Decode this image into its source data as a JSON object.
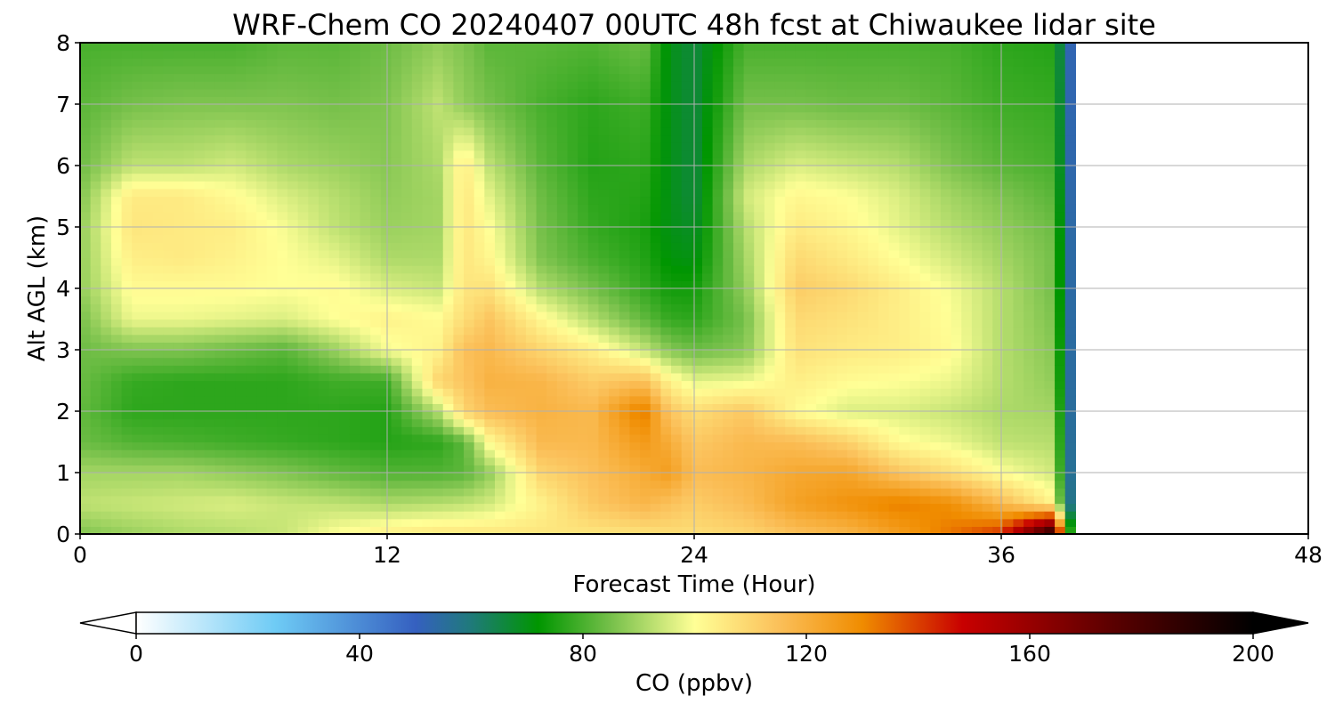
{
  "chart_data": {
    "type": "heatmap",
    "title": "WRF-Chem CO  20240407 00UTC 48h fcst at Chiwaukee lidar site",
    "xlabel": "Forecast Time (Hour)",
    "ylabel": "Alt AGL (km)",
    "xlim": [
      0,
      48
    ],
    "ylim": [
      0,
      8
    ],
    "x_ticks": [
      "0",
      "12",
      "24",
      "36",
      "48"
    ],
    "y_ticks": [
      "0",
      "1",
      "2",
      "3",
      "4",
      "5",
      "6",
      "7",
      "8"
    ],
    "grid": true,
    "data_end_hour": 38.9,
    "colorbar": {
      "label": "CO  (ppbv)",
      "range": [
        0,
        200
      ],
      "extend": "both",
      "ticks": [
        "0",
        "40",
        "80",
        "120",
        "160",
        "200"
      ],
      "color_stops": [
        {
          "v": 0,
          "c": "#ffffff"
        },
        {
          "v": 25,
          "c": "#6ecbf5"
        },
        {
          "v": 50,
          "c": "#3560c0"
        },
        {
          "v": 60,
          "c": "#1f7a7a"
        },
        {
          "v": 72,
          "c": "#009600"
        },
        {
          "v": 85,
          "c": "#76c04a"
        },
        {
          "v": 100,
          "c": "#ffff96"
        },
        {
          "v": 115,
          "c": "#fbc05a"
        },
        {
          "v": 130,
          "c": "#f08c00"
        },
        {
          "v": 148,
          "c": "#c80000"
        },
        {
          "v": 175,
          "c": "#5a0000"
        },
        {
          "v": 200,
          "c": "#000000"
        }
      ]
    },
    "hours": [
      0,
      2,
      4,
      6,
      8,
      10,
      12,
      14,
      15,
      16,
      18,
      20,
      22,
      23,
      24,
      26,
      28,
      30,
      32,
      34,
      36,
      38
    ],
    "altitudes_km": [
      0,
      0.5,
      1,
      1.5,
      2,
      2.5,
      3,
      3.5,
      4,
      4.5,
      5,
      5.5,
      6,
      7,
      8
    ],
    "co_ppbv": [
      [
        86,
        93,
        90,
        84,
        83,
        84,
        84,
        85,
        88,
        88,
        88,
        86,
        84,
        82,
        80
      ],
      [
        89,
        94,
        90,
        81,
        77,
        78,
        86,
        98,
        101,
        104,
        106,
        105,
        93,
        85,
        80
      ],
      [
        91,
        95,
        90,
        80,
        77,
        77,
        86,
        98,
        101,
        105,
        105,
        105,
        93,
        86,
        80
      ],
      [
        92,
        96,
        88,
        79,
        77,
        77,
        84,
        97,
        101,
        103,
        104,
        101,
        95,
        86,
        80
      ],
      [
        94,
        94,
        86,
        78,
        77,
        77,
        82,
        96,
        100,
        100,
        99,
        96,
        91,
        86,
        82
      ],
      [
        100,
        93,
        83,
        77,
        77,
        79,
        89,
        100,
        101,
        97,
        93,
        92,
        89,
        85,
        82
      ],
      [
        104,
        91,
        81,
        76,
        76,
        79,
        99,
        103,
        96,
        91,
        89,
        88,
        87,
        86,
        84
      ],
      [
        106,
        92,
        81,
        77,
        92,
        110,
        103,
        101,
        94,
        91,
        90,
        90,
        91,
        93,
        88
      ],
      [
        106,
        93,
        82,
        82,
        110,
        114,
        115,
        108,
        106,
        106,
        106,
        106,
        105,
        88,
        86
      ],
      [
        106,
        95,
        88,
        101,
        116,
        119,
        117,
        114,
        107,
        102,
        100,
        97,
        93,
        85,
        82
      ],
      [
        106,
        103,
        110,
        117,
        119,
        118,
        110,
        102,
        92,
        86,
        85,
        84,
        82,
        80,
        82
      ],
      [
        106,
        113,
        115,
        117,
        117,
        112,
        104,
        92,
        85,
        80,
        78,
        77,
        76,
        77,
        81
      ],
      [
        107,
        118,
        121,
        126,
        133,
        115,
        94,
        83,
        78,
        76,
        75,
        76,
        77,
        79,
        84
      ],
      [
        108,
        115,
        125,
        121,
        114,
        103,
        87,
        78,
        74,
        71,
        70,
        70,
        70,
        70,
        70
      ],
      [
        108,
        112,
        116,
        113,
        108,
        97,
        84,
        77,
        74,
        70,
        68,
        66,
        66,
        66,
        66
      ],
      [
        110,
        116,
        118,
        117,
        113,
        98,
        87,
        85,
        88,
        90,
        92,
        95,
        91,
        85,
        80
      ],
      [
        115,
        124,
        122,
        116,
        101,
        104,
        107,
        109,
        112,
        109,
        105,
        102,
        96,
        85,
        80
      ],
      [
        118,
        128,
        123,
        111,
        96,
        101,
        105,
        107,
        109,
        105,
        102,
        100,
        94,
        84,
        80
      ],
      [
        125,
        132,
        114,
        101,
        96,
        100,
        104,
        104,
        104,
        100,
        97,
        96,
        92,
        84,
        80
      ],
      [
        133,
        129,
        108,
        98,
        94,
        98,
        101,
        100,
        99,
        95,
        92,
        90,
        86,
        82,
        80
      ],
      [
        142,
        117,
        100,
        93,
        91,
        92,
        92,
        92,
        92,
        90,
        88,
        86,
        82,
        79,
        77
      ],
      [
        192,
        103,
        95,
        92,
        90,
        88,
        87,
        86,
        85,
        85,
        84,
        82,
        80,
        78,
        76
      ]
    ]
  }
}
